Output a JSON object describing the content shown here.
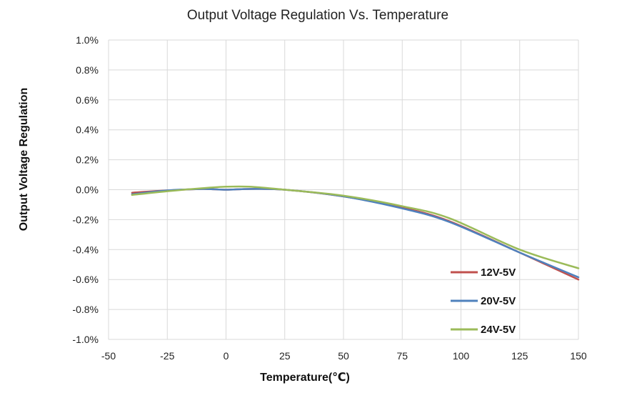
{
  "chart_data": {
    "type": "line",
    "title": "Output Voltage Regulation Vs. Temperature",
    "xlabel": "Temperature(℃)",
    "ylabel": "Output Voltage Regulation",
    "xlim": [
      -50,
      150
    ],
    "ylim": [
      -1.0,
      1.0
    ],
    "x_ticks": [
      -50,
      -25,
      0,
      25,
      50,
      75,
      100,
      125,
      150
    ],
    "x_tick_labels": [
      "-50",
      "-25",
      "0",
      "25",
      "50",
      "75",
      "100",
      "125",
      "150"
    ],
    "y_ticks": [
      1.0,
      0.8,
      0.6,
      0.4,
      0.2,
      0.0,
      -0.2,
      -0.4,
      -0.6,
      -0.8,
      -1.0
    ],
    "y_tick_labels": [
      "1.0%",
      "0.8%",
      "0.6%",
      "0.4%",
      "0.2%",
      "0.0%",
      "-0.2%",
      "-0.4%",
      "-0.6%",
      "-0.8%",
      "-1.0%"
    ],
    "grid": true,
    "legend_position": "bottom-right",
    "series": [
      {
        "name": "12V-5V",
        "color": "#c0504d",
        "x": [
          -40,
          -25,
          -10,
          0,
          10,
          25,
          50,
          75,
          95,
          125,
          150
        ],
        "values": [
          -0.02,
          -0.005,
          0.005,
          0.0,
          0.005,
          0.0,
          -0.045,
          -0.12,
          -0.21,
          -0.42,
          -0.6
        ]
      },
      {
        "name": "20V-5V",
        "color": "#4f81bd",
        "x": [
          -40,
          -25,
          -10,
          0,
          10,
          25,
          50,
          75,
          95,
          125,
          150
        ],
        "values": [
          -0.03,
          -0.005,
          0.005,
          0.0,
          0.005,
          0.0,
          -0.045,
          -0.125,
          -0.215,
          -0.42,
          -0.585
        ]
      },
      {
        "name": "24V-5V",
        "color": "#9bbb59",
        "x": [
          -40,
          -25,
          -10,
          0,
          10,
          25,
          50,
          75,
          95,
          125,
          150
        ],
        "values": [
          -0.035,
          -0.01,
          0.01,
          0.02,
          0.02,
          0.0,
          -0.04,
          -0.11,
          -0.19,
          -0.4,
          -0.525
        ]
      }
    ]
  }
}
